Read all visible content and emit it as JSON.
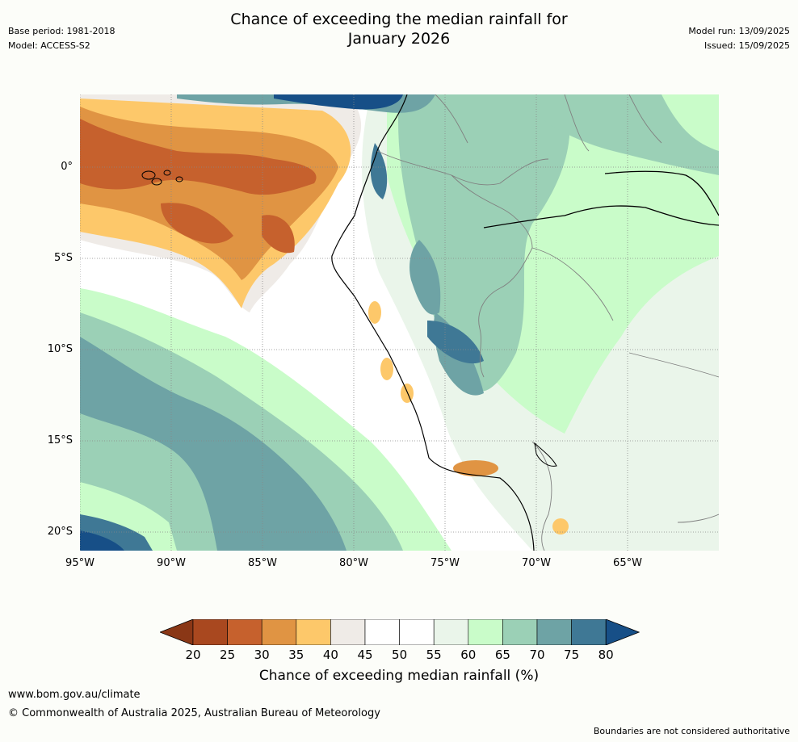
{
  "title_line1": "Chance of exceeding the median rainfall for",
  "title_line2": "January 2026",
  "meta_left": [
    "Base period: 1981-2018",
    "Model: ACCESS-S2"
  ],
  "meta_right": [
    "Model run: 13/09/2025",
    "Issued: 15/09/2025"
  ],
  "lat_labels": [
    "0°",
    "5°S",
    "10°S",
    "15°S",
    "20°S"
  ],
  "lon_labels": [
    "95°W",
    "90°W",
    "85°W",
    "80°W",
    "75°W",
    "70°W",
    "65°W"
  ],
  "colorbar": {
    "ticks": [
      "20",
      "25",
      "30",
      "35",
      "40",
      "45",
      "50",
      "55",
      "60",
      "65",
      "70",
      "75",
      "80"
    ],
    "colors": [
      "#a9481f",
      "#c6612d",
      "#e09443",
      "#fdc86a",
      "#efebe7",
      "#ffffff",
      "#ffffff",
      "#eaf5ea",
      "#c9fcc9",
      "#9bd0b6",
      "#6ea3a5",
      "#3f7895"
    ],
    "under_color": "#8a3716",
    "over_color": "#174f87",
    "title": "Chance of exceeding median rainfall (%)"
  },
  "footer": {
    "url": "www.bom.gov.au/climate",
    "copyright": "© Commonwealth of Australia 2025, Australian Bureau of Meteorology",
    "note": "Boundaries are not considered authoritative"
  }
}
